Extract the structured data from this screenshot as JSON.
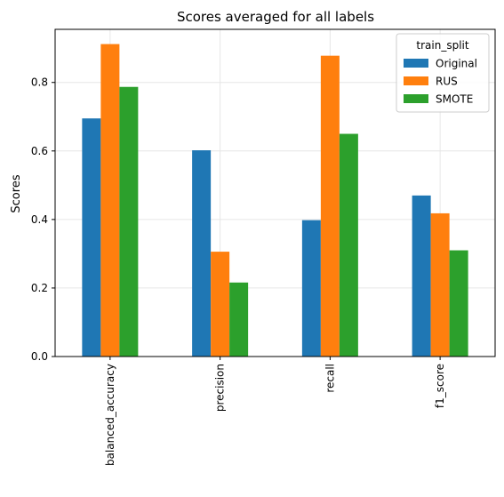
{
  "chart_data": {
    "type": "bar",
    "title": "Scores averaged for all labels",
    "xlabel": "",
    "ylabel": "Scores",
    "categories": [
      "balanced_accuracy",
      "precision",
      "recall",
      "f1_score"
    ],
    "series": [
      {
        "name": "Original",
        "color": "#1f77b4",
        "values": [
          0.695,
          0.602,
          0.398,
          0.47
        ]
      },
      {
        "name": "RUS",
        "color": "#ff7f0e",
        "values": [
          0.912,
          0.306,
          0.878,
          0.418
        ]
      },
      {
        "name": "SMOTE",
        "color": "#2ca02c",
        "values": [
          0.787,
          0.216,
          0.65,
          0.31
        ]
      }
    ],
    "ylim": [
      0,
      0.955
    ],
    "yticks": [
      "0.0",
      "0.2",
      "0.4",
      "0.6",
      "0.8"
    ],
    "grid": true,
    "legend": {
      "title": "train_split",
      "position": "top-right"
    }
  }
}
